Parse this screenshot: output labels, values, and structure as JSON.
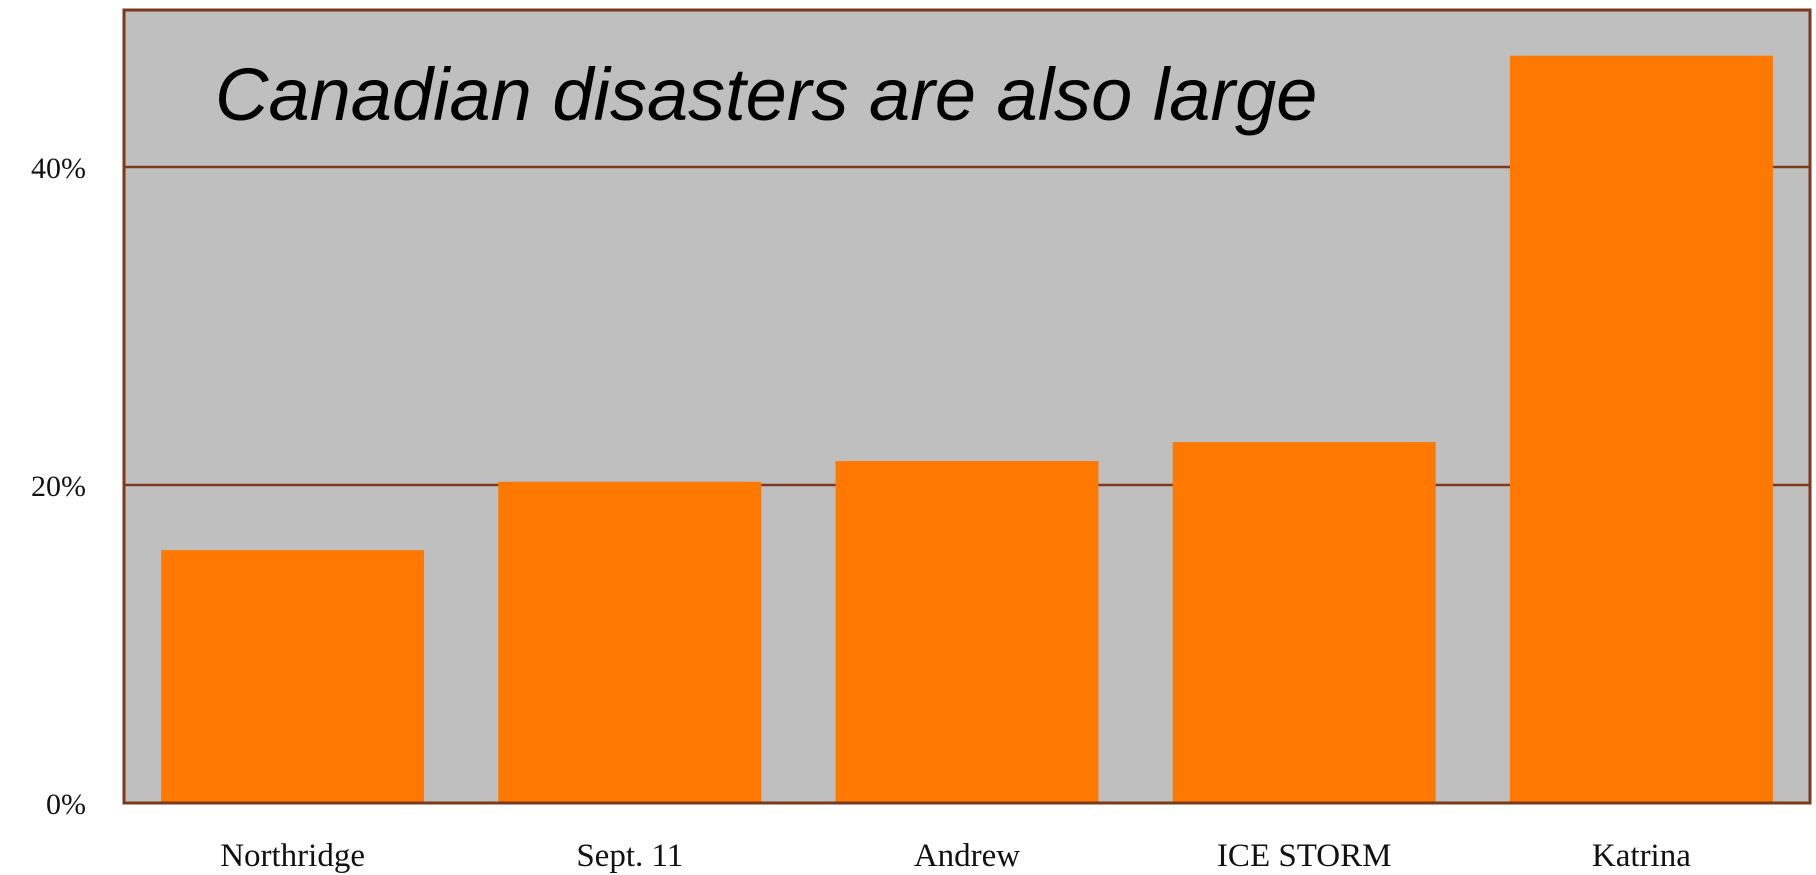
{
  "chart_data": {
    "type": "bar",
    "title": "Canadian disasters are also large",
    "categories": [
      "Northridge",
      "Sept. 11",
      "Andrew",
      "ICE STORM",
      "Katrina"
    ],
    "values": [
      15.9,
      20.2,
      21.5,
      22.7,
      47.0
    ],
    "ylim": [
      0,
      50
    ],
    "yticks": [
      0,
      20,
      40
    ],
    "ytick_labels": [
      "0%",
      "20%",
      "40%"
    ],
    "xlabel": "",
    "ylabel": "",
    "grid": true,
    "legend": "none",
    "colors": {
      "bar": "#ff7800",
      "plot_background": "#bfbfbf",
      "gridline": "#7b3a1e",
      "frame": "#7b3a1e"
    }
  }
}
